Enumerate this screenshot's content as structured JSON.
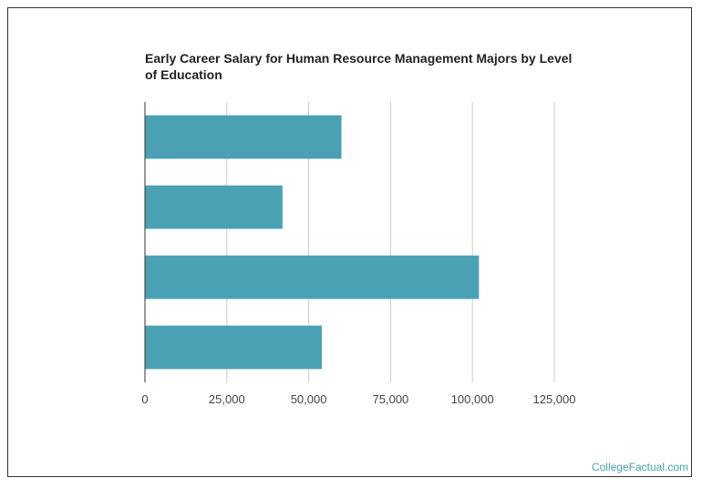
{
  "chart_data": {
    "type": "bar",
    "orientation": "horizontal",
    "title": "Early Career Salary for Human Resource Management Majors by Level of Education",
    "categories": [
      "",
      "",
      "",
      ""
    ],
    "values": [
      60000,
      42000,
      102000,
      54000
    ],
    "xlim": [
      0,
      125000
    ],
    "x_ticks": [
      0,
      25000,
      50000,
      75000,
      100000,
      125000
    ],
    "x_tick_labels": [
      "0",
      "25,000",
      "50,000",
      "75,000",
      "100,000",
      "125,000"
    ],
    "xlabel": "",
    "ylabel": "",
    "grid": true,
    "legend": "none",
    "bar_color": "#4aa1b3"
  },
  "watermark": "CollegeFactual.com"
}
